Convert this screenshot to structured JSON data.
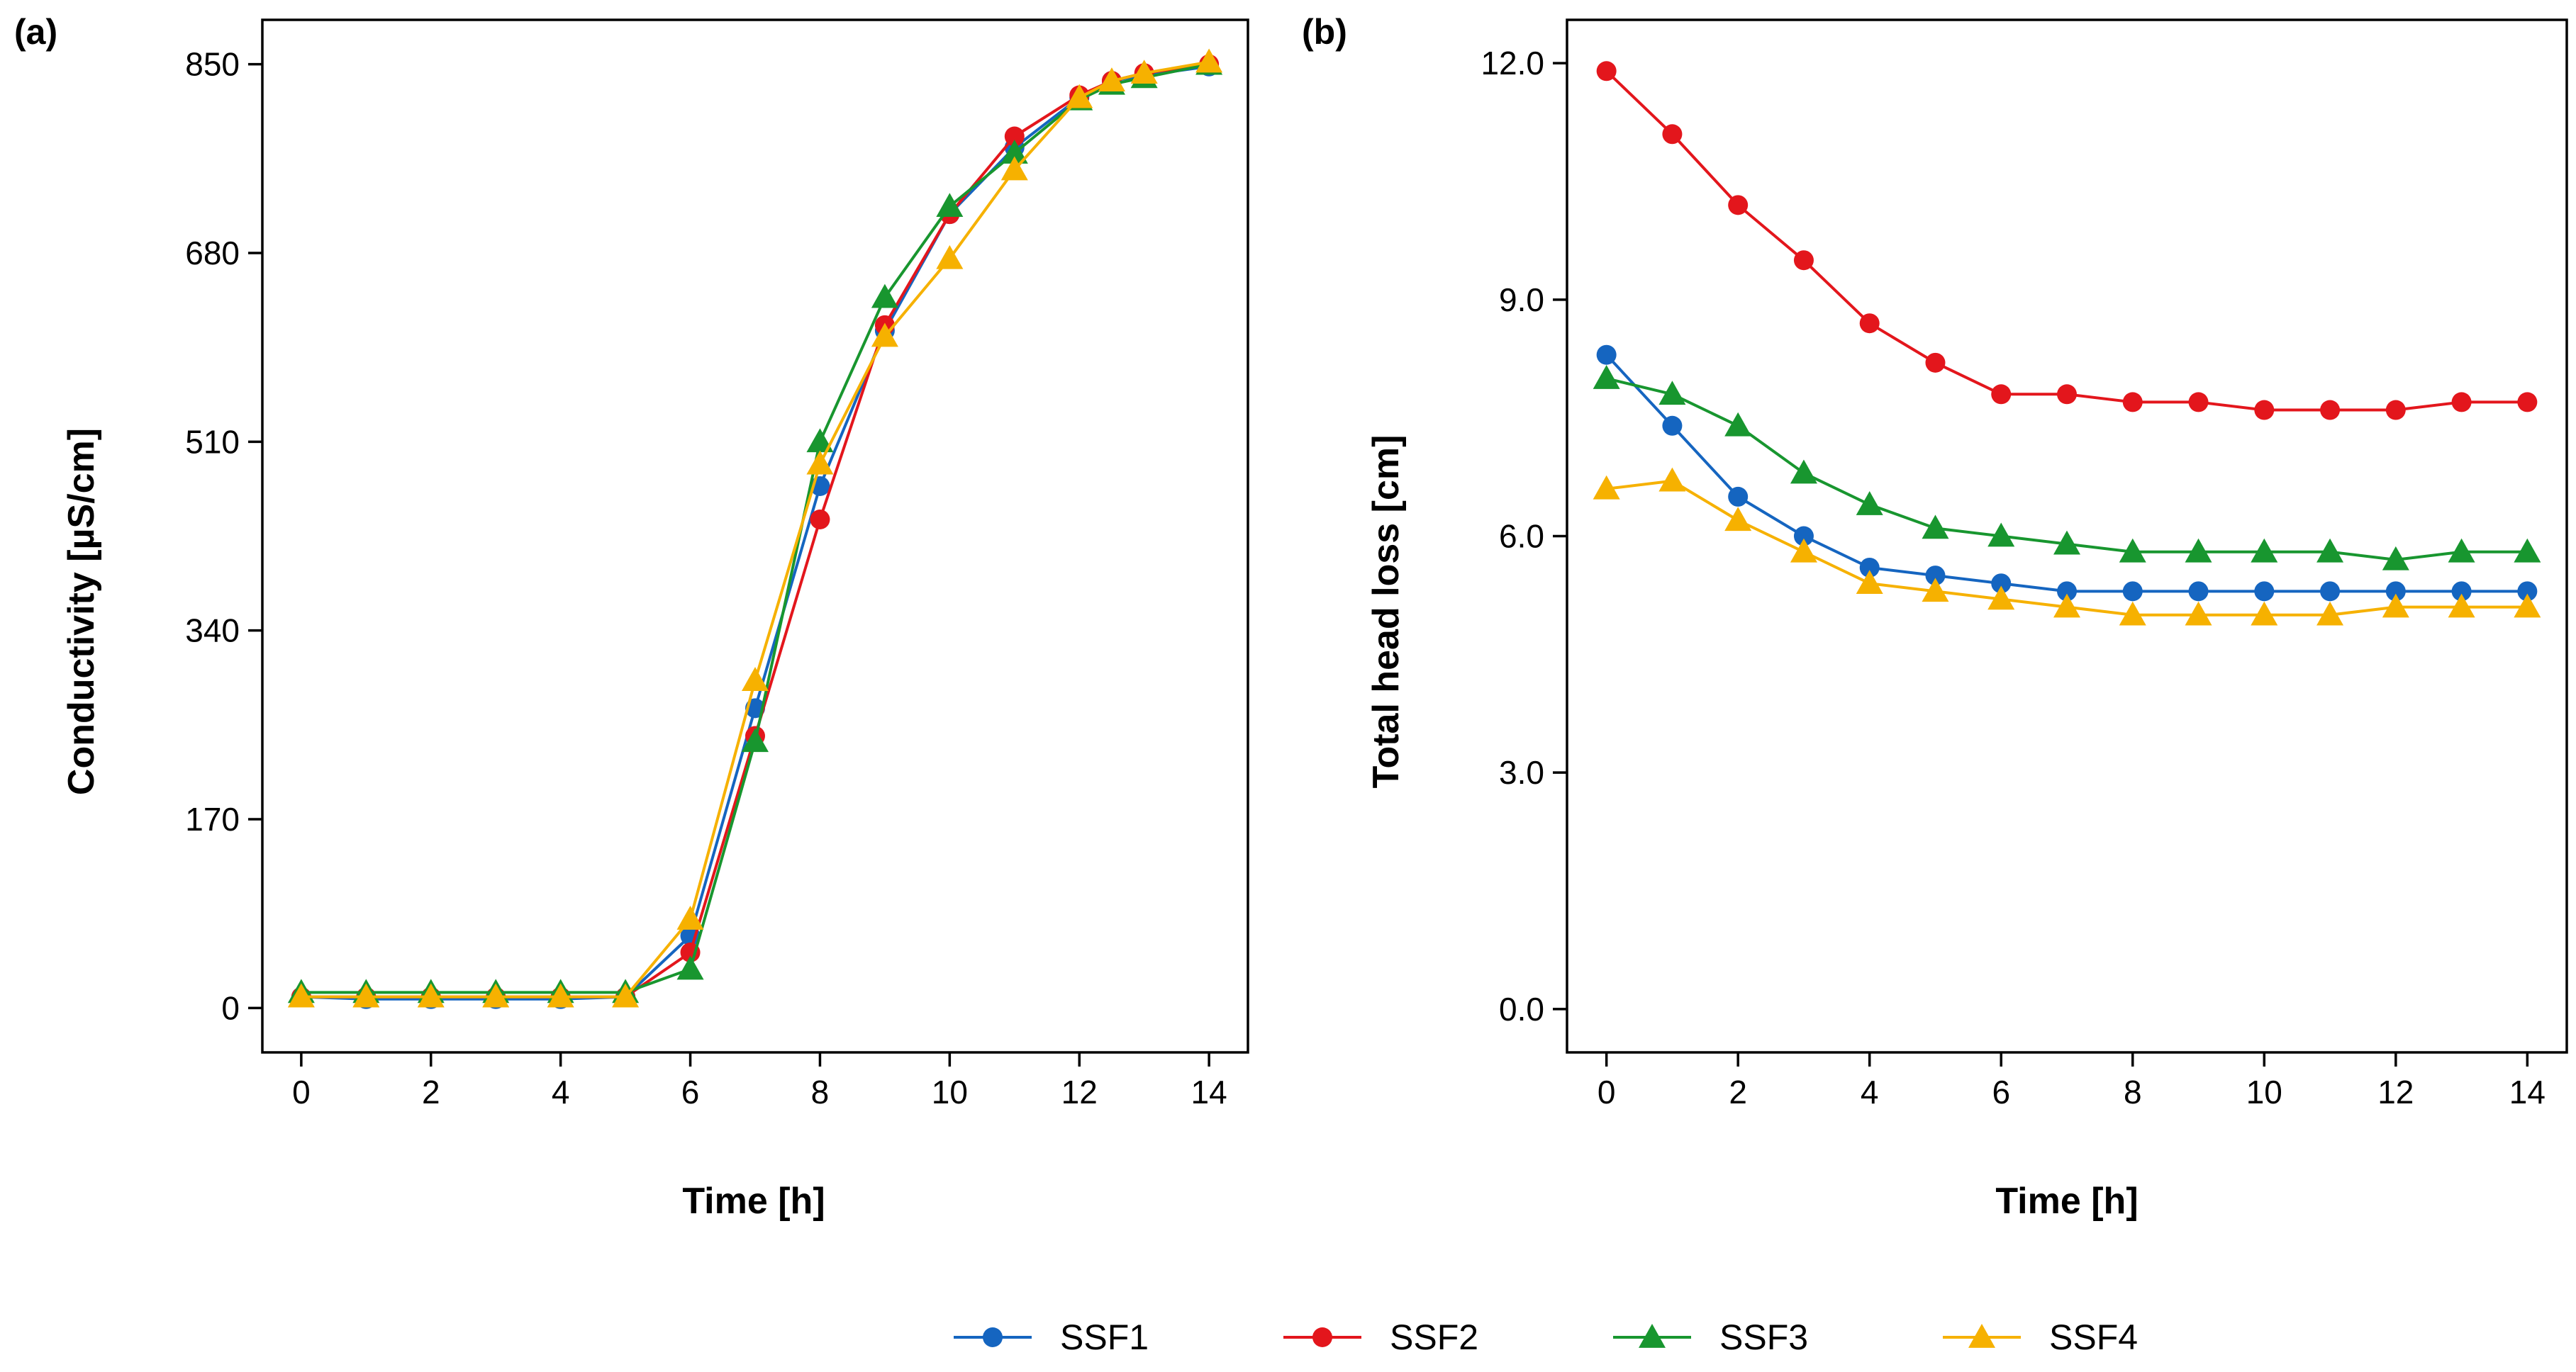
{
  "legend": {
    "position": "bottom-center",
    "series": [
      {
        "name": "SSF1",
        "color": "#1565C0",
        "marker": "circle"
      },
      {
        "name": "SSF2",
        "color": "#E3161C",
        "marker": "circle"
      },
      {
        "name": "SSF3",
        "color": "#18962F",
        "marker": "triangle"
      },
      {
        "name": "SSF4",
        "color": "#F6B100",
        "marker": "triangle"
      }
    ]
  },
  "chart_data": [
    {
      "panel_label": "(a)",
      "type": "line",
      "xlabel": "Time [h]",
      "ylabel": "Conductivity [µS/cm]",
      "xlim": [
        -0.6,
        14.6
      ],
      "ylim": [
        -40,
        890
      ],
      "xticks": [
        0,
        2,
        4,
        6,
        8,
        10,
        12,
        14
      ],
      "yticks": [
        0,
        170,
        340,
        510,
        680,
        850
      ],
      "ytick_labels": [
        "0",
        "170",
        "340",
        "510",
        "680",
        "850"
      ],
      "grid": false,
      "x": [
        0,
        1,
        2,
        3,
        4,
        5,
        6,
        7,
        8,
        9,
        10,
        11,
        12,
        12.5,
        13,
        14
      ],
      "series": [
        {
          "name": "SSF1",
          "values": [
            10,
            8,
            8,
            8,
            8,
            10,
            65,
            270,
            470,
            610,
            715,
            775,
            820,
            835,
            840,
            848
          ]
        },
        {
          "name": "SSF2",
          "values": [
            10,
            10,
            10,
            10,
            10,
            10,
            50,
            245,
            440,
            615,
            715,
            785,
            822,
            835,
            842,
            850
          ]
        },
        {
          "name": "SSF3",
          "values": [
            14,
            14,
            14,
            14,
            14,
            14,
            35,
            240,
            510,
            640,
            722,
            770,
            818,
            832,
            838,
            850
          ]
        },
        {
          "name": "SSF4",
          "values": [
            10,
            10,
            10,
            10,
            10,
            10,
            80,
            295,
            490,
            605,
            675,
            755,
            820,
            835,
            842,
            852
          ]
        }
      ]
    },
    {
      "panel_label": "(b)",
      "type": "line",
      "xlabel": "Time [h]",
      "ylabel": "Total head loss [cm]",
      "xlim": [
        -0.6,
        14.6
      ],
      "ylim": [
        -0.55,
        12.55
      ],
      "xticks": [
        0,
        2,
        4,
        6,
        8,
        10,
        12,
        14
      ],
      "yticks": [
        0,
        3,
        6,
        9,
        12
      ],
      "ytick_labels": [
        "0.0",
        "3.0",
        "6.0",
        "9.0",
        "12.0"
      ],
      "grid": false,
      "x": [
        0,
        1,
        2,
        3,
        4,
        5,
        6,
        7,
        8,
        9,
        10,
        11,
        12,
        13,
        14
      ],
      "series": [
        {
          "name": "SSF1",
          "values": [
            8.3,
            7.4,
            6.5,
            6.0,
            5.6,
            5.5,
            5.4,
            5.3,
            5.3,
            5.3,
            5.3,
            5.3,
            5.3,
            5.3,
            5.3
          ]
        },
        {
          "name": "SSF2",
          "values": [
            11.9,
            11.1,
            10.2,
            9.5,
            8.7,
            8.2,
            7.8,
            7.8,
            7.7,
            7.7,
            7.6,
            7.6,
            7.6,
            7.7,
            7.7
          ]
        },
        {
          "name": "SSF3",
          "values": [
            8.0,
            7.8,
            7.4,
            6.8,
            6.4,
            6.1,
            6.0,
            5.9,
            5.8,
            5.8,
            5.8,
            5.8,
            5.7,
            5.8,
            5.8
          ]
        },
        {
          "name": "SSF4",
          "values": [
            6.6,
            6.7,
            6.2,
            5.8,
            5.4,
            5.3,
            5.2,
            5.1,
            5.0,
            5.0,
            5.0,
            5.0,
            5.1,
            5.1,
            5.1
          ]
        }
      ]
    }
  ]
}
